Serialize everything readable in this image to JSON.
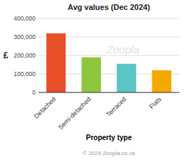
{
  "chart_data": {
    "type": "bar",
    "title": "Avg values (Dec 2024)",
    "categories": [
      "Detached",
      "Semi-detached",
      "Terraced",
      "Flats"
    ],
    "values": [
      320000,
      190000,
      155000,
      120000
    ],
    "colors": [
      "#e8502a",
      "#8dc63f",
      "#5bc4c4",
      "#f5a800"
    ],
    "ylabel": "£",
    "xlabel": "Property type",
    "ylim": [
      0,
      400000
    ],
    "yticks": [
      0,
      {
        "value": 100000,
        "label": "100,000"
      },
      {
        "value": 200000,
        "label": "200,000"
      },
      {
        "value": 300000,
        "label": "300,000"
      },
      {
        "value": 400000,
        "label": "400,000"
      }
    ],
    "grid": true,
    "annotations": [
      "Zoopla",
      "© 2024 Zoopla.co.uk"
    ]
  }
}
